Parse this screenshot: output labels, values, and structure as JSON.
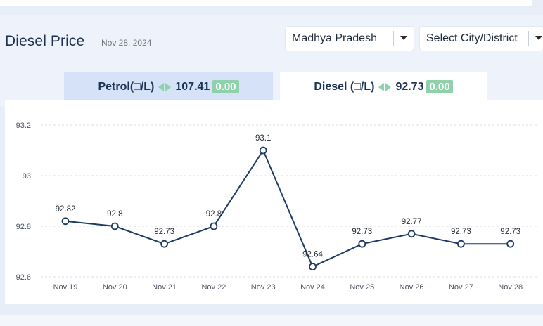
{
  "page": {
    "title": "Diesel Price",
    "date": "Nov 28, 2024"
  },
  "filters": {
    "state": "Madhya Pradesh",
    "city": "Select City/District"
  },
  "tabs": {
    "petrol": {
      "label": "Petrol(□/L)",
      "price": "107.41",
      "change": "0.00"
    },
    "diesel": {
      "label": "Diesel (□/L)",
      "price": "92.73",
      "change": "0.00"
    }
  },
  "colors": {
    "line": "#1e3a63",
    "change_badge": "#8fd1ab",
    "active_tab": "#ffffff",
    "inactive_tab": "#d6e2f7"
  },
  "chart_data": {
    "type": "line",
    "categories": [
      "Nov 19",
      "Nov 20",
      "Nov 21",
      "Nov 22",
      "Nov 23",
      "Nov 24",
      "Nov 25",
      "Nov 26",
      "Nov 27",
      "Nov 28"
    ],
    "series": [
      {
        "values": [
          92.82,
          92.8,
          92.73,
          92.8,
          93.1,
          92.64,
          92.73,
          92.77,
          92.73,
          92.73
        ]
      }
    ],
    "data_labels": [
      "92.82",
      "92.8",
      "92.73",
      "92.8",
      "93.1",
      "92.64",
      "92.73",
      "92.77",
      "92.73",
      "92.73"
    ],
    "y_ticks": [
      "92.6",
      "92.8",
      "93",
      "93.2"
    ],
    "ylim": [
      92.6,
      93.2
    ],
    "grid": "horizontal dashed"
  }
}
